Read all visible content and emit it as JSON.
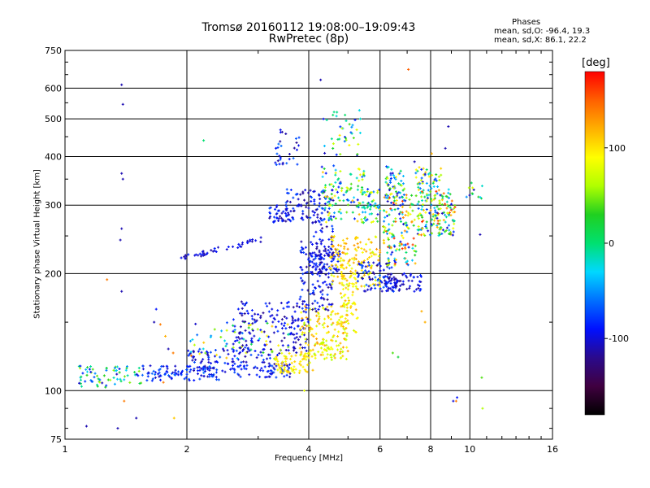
{
  "chart_data": {
    "type": "scatter",
    "title": "Tromsø 20160112 19:08:00–19:09:43",
    "subtitle": "RwPretec (8p)",
    "stats": {
      "title": "Phases",
      "line_o": "mean, sd,O: -96.4, 19.3",
      "line_x": "mean, sd,X:  86.1, 22.2"
    },
    "xlabel": "Frequency [MHz]",
    "ylabel": "Stationary phase Virtual Height [km]",
    "x_scale": "log",
    "y_scale": "log",
    "xlim": [
      1,
      16
    ],
    "ylim": [
      75,
      750
    ],
    "x_ticks": [
      1,
      2,
      4,
      6,
      8,
      10,
      16
    ],
    "x_tick_labels": [
      "1",
      "2",
      "4",
      "6",
      "8",
      "10",
      "16"
    ],
    "y_ticks": [
      75,
      100,
      200,
      300,
      400,
      500,
      600,
      750
    ],
    "y_tick_labels": [
      "75",
      "100",
      "200",
      "300",
      "400",
      "500",
      "600",
      "750"
    ],
    "grid": true,
    "colorbar": {
      "unit": "[deg]",
      "range": [
        -180,
        180
      ],
      "ticks": [
        100,
        0,
        -100
      ],
      "tick_labels": [
        "100",
        "0",
        "-100"
      ],
      "colors": [
        "#000000",
        "#400040",
        "#2a0a8c",
        "#0010ff",
        "#0070ff",
        "#00d8ff",
        "#00e070",
        "#20d020",
        "#b0ff00",
        "#ffff00",
        "#ffb000",
        "#ff6000",
        "#ff0000"
      ]
    },
    "clusters": [
      {
        "x": [
          1.08,
          1.55
        ],
        "y": [
          102,
          116
        ],
        "phase": [
          -110,
          70
        ],
        "n": 70
      },
      {
        "x": [
          1.55,
          2.4
        ],
        "y": [
          106,
          116
        ],
        "phase": [
          -110,
          -60
        ],
        "n": 90
      },
      {
        "x": [
          2.0,
          3.6
        ],
        "y": [
          108,
          128
        ],
        "phase": [
          -115,
          -70
        ],
        "n": 160
      },
      {
        "x": [
          2.0,
          3.6
        ],
        "y": [
          120,
          150
        ],
        "phase": [
          -110,
          120
        ],
        "n": 70
      },
      {
        "x": [
          2.6,
          4.0
        ],
        "y": [
          125,
          170
        ],
        "phase": [
          -120,
          -80
        ],
        "n": 160
      },
      {
        "x": [
          3.3,
          4.1
        ],
        "y": [
          111,
          125
        ],
        "phase": [
          80,
          115
        ],
        "n": 70
      },
      {
        "x": [
          3.8,
          5.0
        ],
        "y": [
          120,
          165
        ],
        "phase": [
          60,
          130
        ],
        "n": 170
      },
      {
        "x": [
          4.8,
          5.3
        ],
        "y": [
          140,
          200
        ],
        "phase": [
          70,
          125
        ],
        "n": 60
      },
      {
        "x": [
          3.8,
          4.6
        ],
        "y": [
          160,
          330
        ],
        "phase": [
          -120,
          -70
        ],
        "n": 200
      },
      {
        "x": [
          4.0,
          4.8
        ],
        "y": [
          200,
          240
        ],
        "phase": [
          -120,
          -80
        ],
        "n": 80
      },
      {
        "x": [
          4.5,
          6.0
        ],
        "y": [
          185,
          250
        ],
        "phase": [
          70,
          130
        ],
        "n": 150
      },
      {
        "x": [
          5.2,
          6.6
        ],
        "y": [
          180,
          215
        ],
        "phase": [
          -120,
          -60
        ],
        "n": 90
      },
      {
        "x": [
          6.2,
          7.6
        ],
        "y": [
          180,
          200
        ],
        "phase": [
          -125,
          -80
        ],
        "n": 60
      },
      {
        "x": [
          4.3,
          5.5
        ],
        "y": [
          270,
          380
        ],
        "phase": [
          -110,
          120
        ],
        "n": 120
      },
      {
        "x": [
          5.4,
          6.0
        ],
        "y": [
          270,
          330
        ],
        "phase": [
          -110,
          110
        ],
        "n": 50
      },
      {
        "x": [
          6.1,
          7.4
        ],
        "y": [
          210,
          320
        ],
        "phase": [
          -110,
          170
        ],
        "n": 150
      },
      {
        "x": [
          6.2,
          6.9
        ],
        "y": [
          310,
          380
        ],
        "phase": [
          -110,
          110
        ],
        "n": 50
      },
      {
        "x": [
          7.4,
          9.2
        ],
        "y": [
          250,
          330
        ],
        "phase": [
          -110,
          170
        ],
        "n": 170
      },
      {
        "x": [
          7.2,
          8.6
        ],
        "y": [
          330,
          380
        ],
        "phase": [
          -110,
          110
        ],
        "n": 40
      },
      {
        "x": [
          3.2,
          3.7
        ],
        "y": [
          270,
          300
        ],
        "phase": [
          -120,
          -70
        ],
        "n": 50
      },
      {
        "x": [
          3.5,
          4.0
        ],
        "y": [
          290,
          330
        ],
        "phase": [
          -120,
          -70
        ],
        "n": 25
      },
      {
        "x": [
          3.3,
          3.8
        ],
        "y": [
          380,
          470
        ],
        "phase": [
          -120,
          -60
        ],
        "n": 30
      },
      {
        "x": [
          4.3,
          5.4
        ],
        "y": [
          400,
          530
        ],
        "phase": [
          -110,
          110
        ],
        "n": 40
      },
      {
        "x": [
          9.8,
          10.8
        ],
        "y": [
          310,
          350
        ],
        "phase": [
          -110,
          110
        ],
        "n": 12
      }
    ],
    "tracks": [
      {
        "from": [
          1.9,
          218
        ],
        "to": [
          3.1,
          245
        ],
        "phase": [
          -115,
          -85
        ],
        "n": 45
      }
    ],
    "points": [
      [
        1.38,
        612,
        -110
      ],
      [
        1.39,
        545,
        -110
      ],
      [
        1.38,
        362,
        -110
      ],
      [
        1.39,
        350,
        -110
      ],
      [
        1.38,
        261,
        -110
      ],
      [
        1.37,
        244,
        -110
      ],
      [
        1.38,
        180,
        -110
      ],
      [
        1.27,
        193,
        140
      ],
      [
        1.68,
        162,
        -90
      ],
      [
        1.66,
        150,
        -110
      ],
      [
        1.72,
        148,
        140
      ],
      [
        1.77,
        138,
        120
      ],
      [
        1.8,
        128,
        -110
      ],
      [
        1.85,
        125,
        140
      ],
      [
        2.2,
        440,
        0
      ],
      [
        4.28,
        630,
        -110
      ],
      [
        7.05,
        670,
        150
      ],
      [
        8.85,
        478,
        -110
      ],
      [
        8.7,
        420,
        -110
      ],
      [
        8.05,
        407,
        120
      ],
      [
        7.3,
        388,
        -110
      ],
      [
        7.6,
        160,
        120
      ],
      [
        7.75,
        150,
        120
      ],
      [
        6.45,
        125,
        40
      ],
      [
        6.65,
        122,
        20
      ],
      [
        10.6,
        252,
        -110
      ],
      [
        10.7,
        108,
        40
      ],
      [
        10.75,
        90,
        60
      ],
      [
        9.1,
        94,
        -100
      ],
      [
        9.3,
        96,
        -90
      ],
      [
        9.25,
        94,
        140
      ],
      [
        3.9,
        100,
        80
      ],
      [
        1.4,
        94,
        140
      ],
      [
        1.13,
        81,
        -110
      ],
      [
        1.35,
        80,
        -110
      ],
      [
        1.5,
        85,
        -110
      ],
      [
        1.86,
        85,
        110
      ],
      [
        2.05,
        123,
        140
      ],
      [
        2.1,
        120,
        -110
      ],
      [
        1.75,
        105,
        140
      ]
    ]
  }
}
